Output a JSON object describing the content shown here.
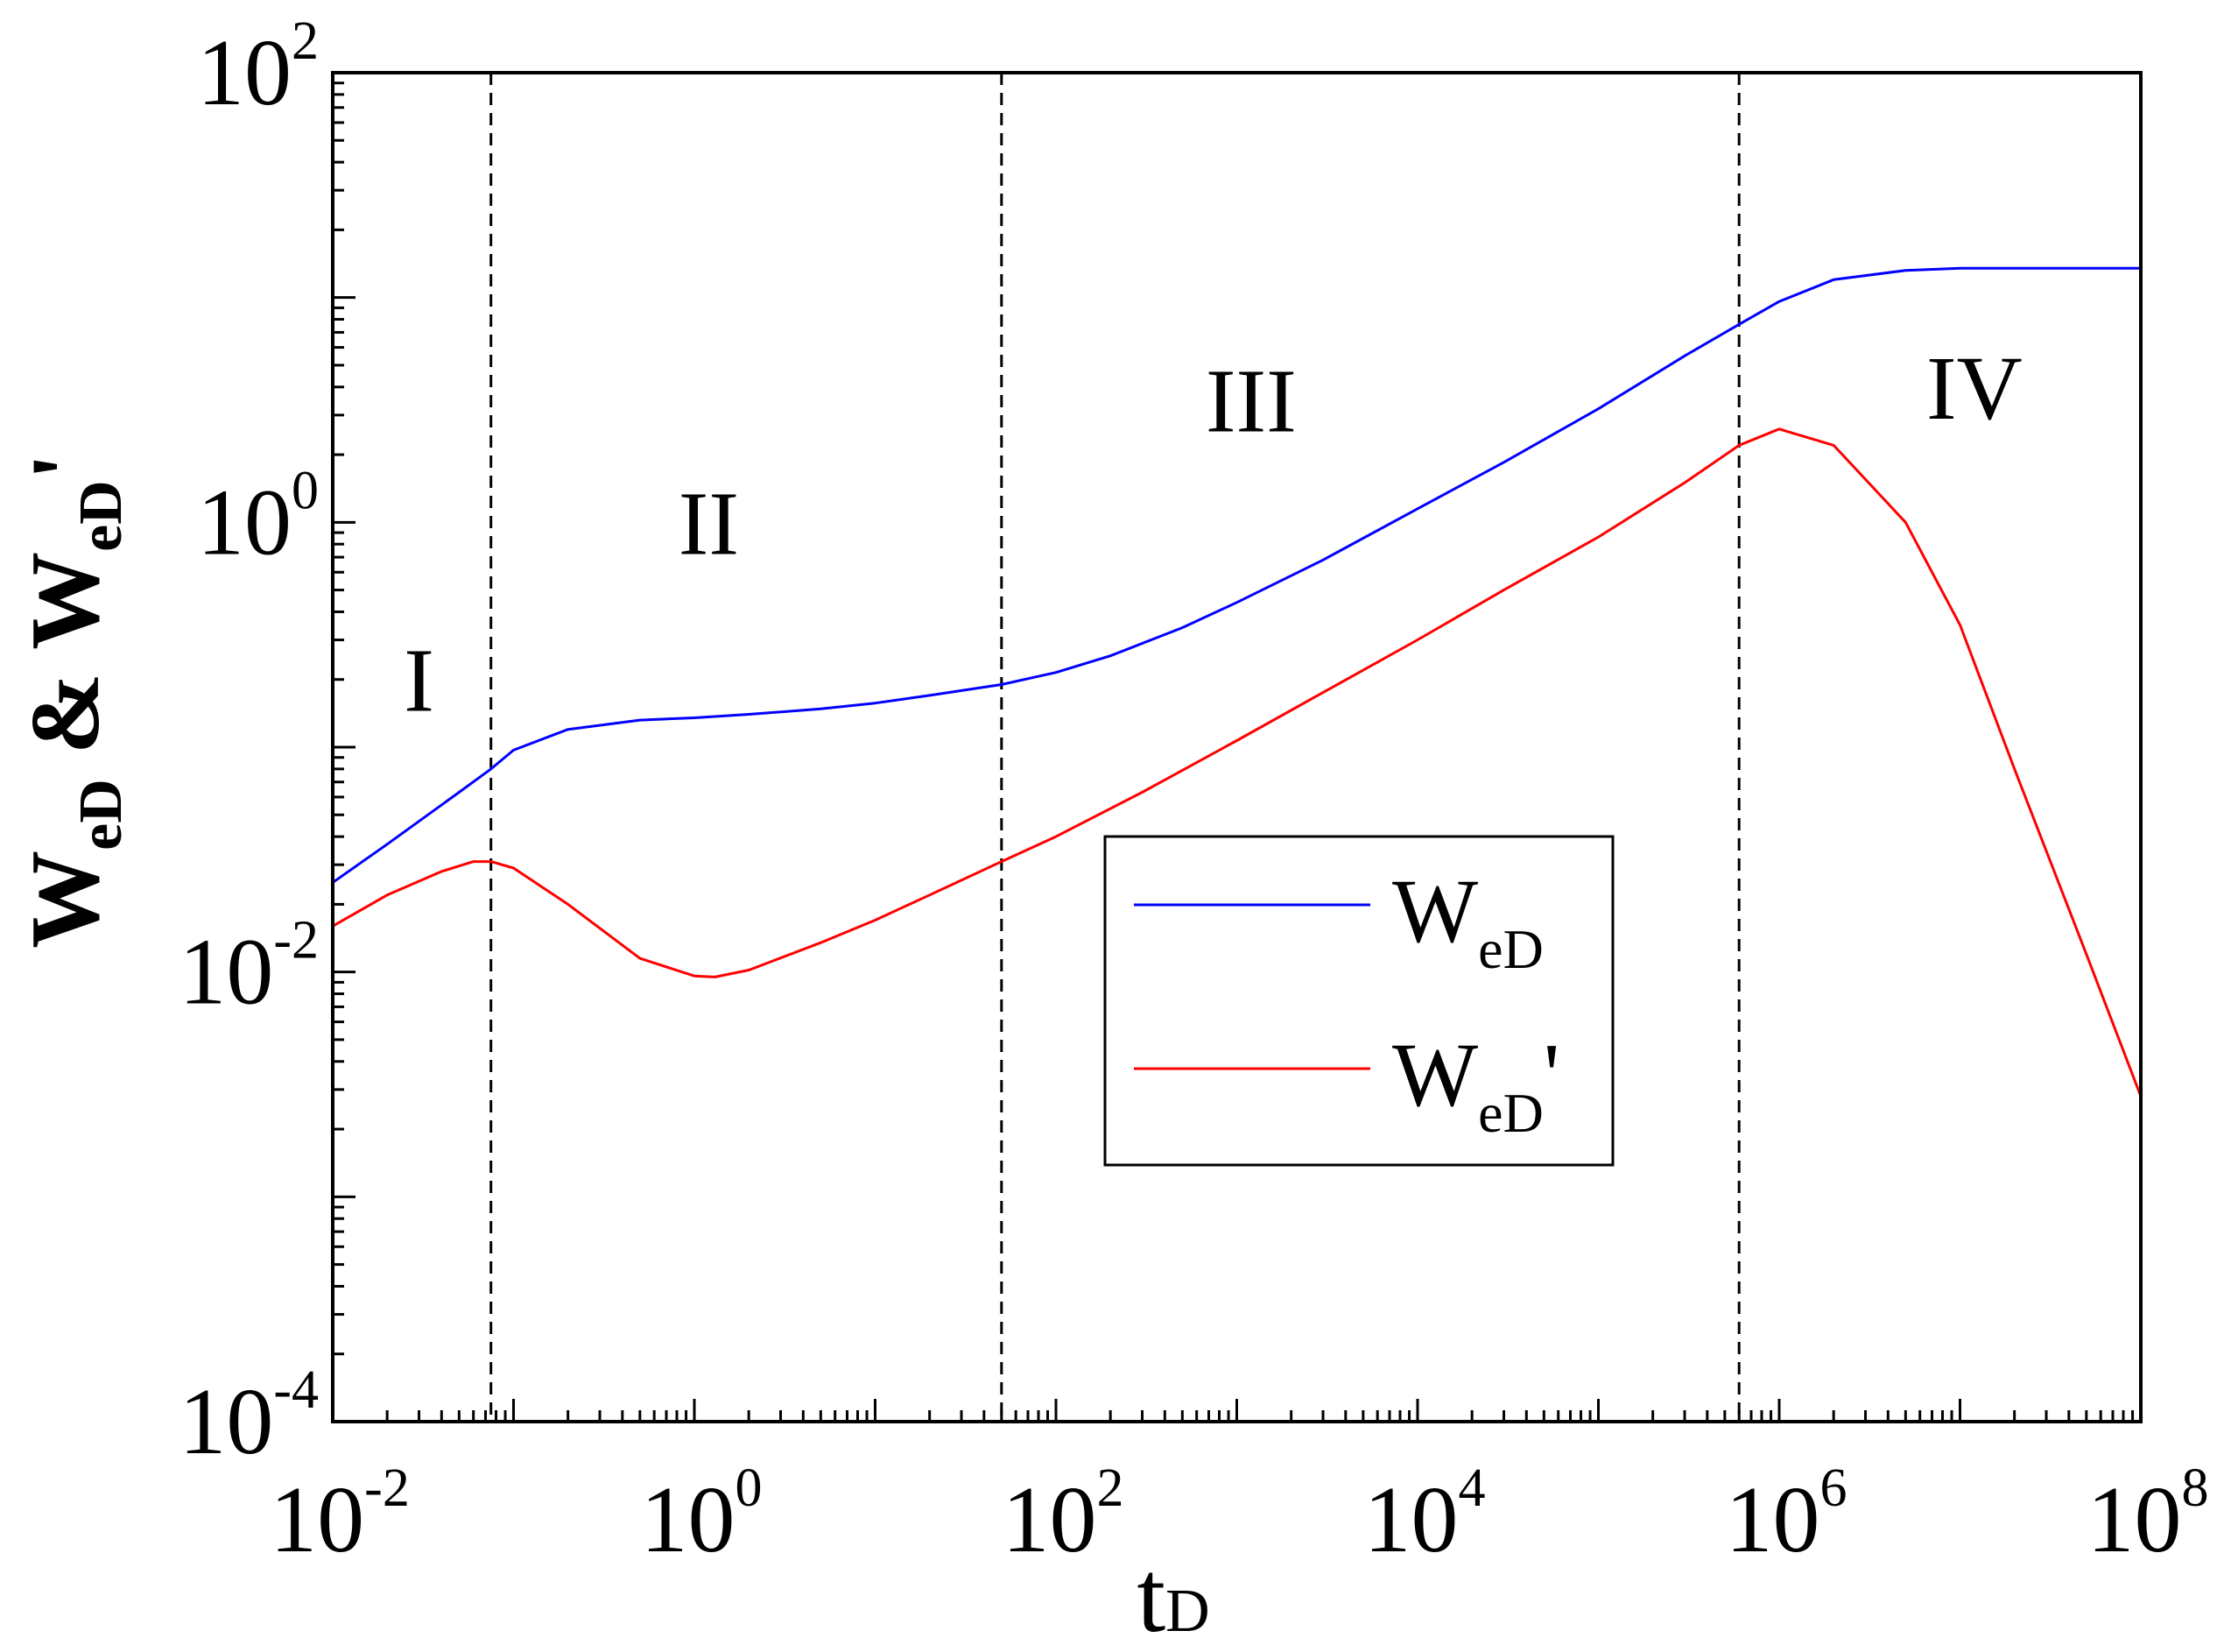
{
  "chart_data": {
    "type": "line",
    "xscale": "log",
    "yscale": "log",
    "xlim": [
      0.01,
      100000000
    ],
    "ylim": [
      0.0001,
      100
    ],
    "x_ticks": [
      {
        "base": "10",
        "exp": "-2",
        "value": 0.01
      },
      {
        "base": "10",
        "exp": "0",
        "value": 1
      },
      {
        "base": "10",
        "exp": "2",
        "value": 100
      },
      {
        "base": "10",
        "exp": "4",
        "value": 10000
      },
      {
        "base": "10",
        "exp": "6",
        "value": 1000000
      },
      {
        "base": "10",
        "exp": "8",
        "value": 100000000
      }
    ],
    "y_ticks": [
      {
        "base": "10",
        "exp": "-4",
        "value": 0.0001
      },
      {
        "base": "10",
        "exp": "-2",
        "value": 0.01
      },
      {
        "base": "10",
        "exp": "0",
        "value": 1
      },
      {
        "base": "10",
        "exp": "2",
        "value": 100
      }
    ],
    "xlabel": {
      "main": "t",
      "sub": "D"
    },
    "ylabel": {
      "w1": "W",
      "sub1": "eD",
      "amp": " & ",
      "w2": "W",
      "sub2": "eD",
      "prime": "'"
    },
    "vlines": [
      0.075,
      50,
      600000
    ],
    "regions": [
      {
        "label": "I",
        "x": 0.03,
        "y": 0.2
      },
      {
        "label": "II",
        "x": 1.2,
        "y": 1.0
      },
      {
        "label": "III",
        "x": 1200,
        "y": 3.5
      },
      {
        "label": "IV",
        "x": 12000000,
        "y": 4.0
      }
    ],
    "legend": {
      "position": "center-right",
      "entries": [
        {
          "main": "W",
          "sub": "eD",
          "suffix": "",
          "color": "#0000ff"
        },
        {
          "main": "W",
          "sub": "eD",
          "suffix": "'",
          "color": "#ff0000"
        }
      ]
    },
    "series": [
      {
        "name": "WeD",
        "color": "#0000ff",
        "x": [
          0.01,
          0.02,
          0.05,
          0.075,
          0.1,
          0.2,
          0.5,
          1,
          2,
          5,
          10,
          20,
          50,
          100,
          200,
          500,
          1000,
          3000,
          10000,
          30000,
          100000,
          300000,
          600000,
          1000000,
          2000000,
          5000000,
          10000000,
          30000000,
          100000000
        ],
        "y": [
          0.025,
          0.037,
          0.063,
          0.08,
          0.097,
          0.12,
          0.132,
          0.135,
          0.14,
          0.148,
          0.157,
          0.17,
          0.19,
          0.215,
          0.255,
          0.34,
          0.44,
          0.68,
          1.15,
          1.85,
          3.2,
          5.5,
          7.6,
          9.6,
          12.0,
          13.2,
          13.5,
          13.5,
          13.5
        ]
      },
      {
        "name": "WeD'",
        "color": "#ff0000",
        "x": [
          0.01,
          0.02,
          0.04,
          0.06,
          0.075,
          0.1,
          0.2,
          0.5,
          1,
          1.3,
          2,
          5,
          10,
          20,
          50,
          100,
          300,
          1000,
          3000,
          10000,
          30000,
          100000,
          300000,
          600000,
          1000000,
          2000000,
          5000000,
          10000000,
          20000000,
          50000000,
          100000000
        ],
        "y": [
          0.016,
          0.022,
          0.028,
          0.031,
          0.031,
          0.029,
          0.02,
          0.0115,
          0.0096,
          0.0095,
          0.0102,
          0.0135,
          0.017,
          0.022,
          0.031,
          0.04,
          0.063,
          0.107,
          0.175,
          0.3,
          0.5,
          0.86,
          1.5,
          2.2,
          2.6,
          2.2,
          1.0,
          0.35,
          0.08,
          0.012,
          0.0028
        ]
      }
    ]
  }
}
